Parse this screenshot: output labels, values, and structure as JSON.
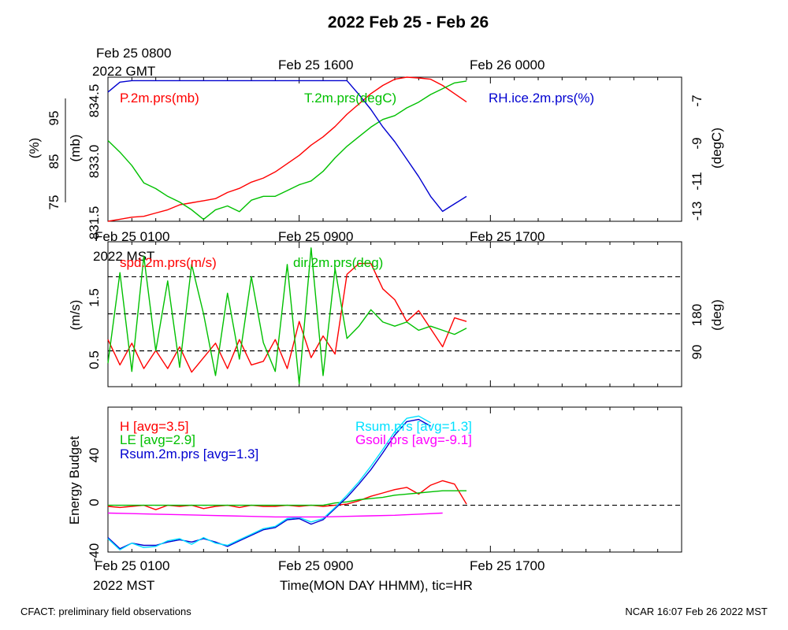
{
  "figure": {
    "title": "2022 Feb 25 - Feb 26",
    "footer_left": "CFACT: preliminary field observations",
    "footer_right": "NCAR 16:07 Feb 26 2022 MST",
    "top_time_labels": [
      "Feb 25 0800",
      "Feb 25 1600",
      "Feb 26 0000"
    ],
    "top_time_unit": "2022 GMT",
    "mid_time_labels": [
      "Feb 25 0100",
      "Feb 25 0900",
      "Feb 25 1700"
    ],
    "mid_time_unit": "2022 MST",
    "bottom_time_labels": [
      "Feb 25 0100",
      "Feb 25 0900",
      "Feb 25 1700"
    ],
    "bottom_time_unit": "2022 MST",
    "xlabel": "Time(MON DAY HHMM), tic=HR"
  },
  "chart_data": [
    {
      "type": "line",
      "panel": "pressure-temperature-humidity",
      "x_unit": "hours since Feb 25 0000 MST",
      "xlim": [
        1,
        25
      ],
      "axes": {
        "rh": {
          "label": "(%)",
          "ticks": [
            "75",
            "85",
            "95"
          ],
          "ylim": [
            72,
            101
          ]
        },
        "pressure": {
          "label": "(mb)",
          "ticks": [
            "831.5",
            "833.0",
            "834.5"
          ],
          "ylim": [
            831.5,
            835.0
          ]
        },
        "temperature": {
          "label": "(degC)",
          "ticks": [
            "-13",
            "-11",
            "-9",
            "-7"
          ],
          "ylim": [
            -13.2,
            -5.7
          ]
        }
      },
      "series": [
        {
          "name": "P.2m.prs(mb)",
          "color": "#ff0000",
          "axis": "pressure",
          "x": [
            1,
            1.5,
            2,
            2.5,
            3,
            3.5,
            4,
            4.5,
            5,
            5.5,
            6,
            6.5,
            7,
            7.5,
            8,
            8.5,
            9,
            9.5,
            10,
            10.5,
            11,
            11.5,
            12,
            12.5,
            13,
            13.5,
            14,
            14.5,
            15,
            15.5,
            16
          ],
          "values": [
            831.5,
            831.55,
            831.6,
            831.62,
            831.7,
            831.78,
            831.9,
            831.95,
            832.0,
            832.05,
            832.2,
            832.3,
            832.45,
            832.55,
            832.7,
            832.9,
            833.1,
            833.35,
            833.55,
            833.8,
            834.1,
            834.35,
            834.6,
            834.8,
            834.95,
            835.0,
            834.98,
            834.95,
            834.8,
            834.6,
            834.4
          ]
        },
        {
          "name": "T.2m.prs(degC)",
          "color": "#00c000",
          "axis": "temperature",
          "x": [
            1,
            1.5,
            2,
            2.5,
            3,
            3.5,
            4,
            4.5,
            5,
            5.5,
            6,
            6.5,
            7,
            7.5,
            8,
            8.5,
            9,
            9.5,
            10,
            10.5,
            11,
            11.5,
            12,
            12.5,
            13,
            13.5,
            14,
            14.5,
            15,
            15.5,
            16
          ],
          "values": [
            -9.0,
            -9.6,
            -10.3,
            -11.2,
            -11.5,
            -11.9,
            -12.2,
            -12.6,
            -13.1,
            -12.6,
            -12.4,
            -12.7,
            -12.1,
            -11.9,
            -11.9,
            -11.6,
            -11.3,
            -11.1,
            -10.6,
            -9.9,
            -9.3,
            -8.8,
            -8.3,
            -7.9,
            -7.7,
            -7.3,
            -7.0,
            -6.6,
            -6.3,
            -6.0,
            -5.9
          ]
        },
        {
          "name": "RH.ice.2m.prs(%)",
          "color": "#0000d0",
          "axis": "rh",
          "x": [
            1,
            1.5,
            2,
            2.5,
            3,
            3.5,
            4,
            4.5,
            5,
            5.5,
            6,
            6.5,
            7,
            7.5,
            8,
            8.5,
            9,
            9.5,
            10,
            10.5,
            11,
            11.5,
            12,
            12.5,
            13,
            13.5,
            14,
            14.5,
            15,
            15.5,
            16
          ],
          "values": [
            98,
            100,
            100.3,
            100.3,
            100.3,
            100.3,
            100.3,
            100.3,
            100.3,
            100.3,
            100.3,
            100.3,
            100.3,
            100.3,
            100.3,
            100.3,
            100.3,
            100.3,
            100.3,
            100.3,
            100.3,
            97.5,
            94.5,
            91,
            88,
            84.5,
            81,
            77,
            74,
            75.5,
            77
          ]
        }
      ],
      "legend": [
        {
          "label": "P.2m.prs(mb)",
          "color": "#ff0000",
          "position": "top-left"
        },
        {
          "label": "T.2m.prs(degC)",
          "color": "#00c000",
          "position": "top-center"
        },
        {
          "label": "RH.ice.2m.prs(%)",
          "color": "#0000d0",
          "position": "top-right"
        }
      ]
    },
    {
      "type": "line",
      "panel": "wind",
      "x_unit": "hours since Feb 25 0000 MST",
      "xlim": [
        1,
        25
      ],
      "axes": {
        "speed": {
          "label": "(m/s)",
          "ticks": [
            "0.5",
            "1.5"
          ],
          "ylim": [
            0.05,
            2.05
          ]
        },
        "direction": {
          "label": "(deg)",
          "ticks": [
            "90",
            "180"
          ],
          "ylim": [
            3,
            355
          ]
        }
      },
      "reference_lines": {
        "axis": "direction",
        "values": [
          90,
          180,
          270
        ],
        "style": "dashed"
      },
      "series": [
        {
          "name": "spd.2m.prs(m/s)",
          "color": "#ff0000",
          "axis": "speed",
          "x": [
            1,
            1.5,
            2,
            2.5,
            3,
            3.5,
            4,
            4.5,
            5,
            5.5,
            6,
            6.5,
            7,
            7.5,
            8,
            8.5,
            9,
            9.5,
            10,
            10.5,
            11,
            11.5,
            12,
            12.5,
            13,
            13.5,
            14,
            14.5,
            15,
            15.5,
            16
          ],
          "values": [
            0.7,
            0.35,
            0.65,
            0.3,
            0.55,
            0.3,
            0.6,
            0.25,
            0.45,
            0.65,
            0.3,
            0.7,
            0.35,
            0.4,
            0.7,
            0.3,
            0.95,
            0.45,
            0.75,
            0.5,
            1.6,
            1.75,
            1.75,
            1.4,
            1.25,
            0.95,
            1.1,
            0.85,
            0.6,
            1.0,
            0.95
          ]
        },
        {
          "name": "dir.2m.prs(deg)",
          "color": "#00c000",
          "axis": "direction",
          "x": [
            1,
            1.5,
            2,
            2.5,
            3,
            3.5,
            4,
            4.5,
            5,
            5.5,
            6,
            6.5,
            7,
            7.5,
            8,
            8.5,
            9,
            9.5,
            10,
            10.5,
            11,
            11.5,
            12,
            12.5,
            13,
            13.5,
            14,
            14.5,
            15,
            15.5,
            16
          ],
          "values": [
            60,
            280,
            40,
            320,
            90,
            260,
            50,
            300,
            180,
            30,
            230,
            70,
            270,
            110,
            40,
            300,
            10,
            340,
            30,
            290,
            120,
            150,
            190,
            160,
            150,
            160,
            140,
            150,
            140,
            130,
            145
          ]
        }
      ],
      "legend": [
        {
          "label": "spd.2m.prs(m/s)",
          "color": "#ff0000",
          "position": "top-left"
        },
        {
          "label": "dir.2m.prs(deg)",
          "color": "#00c000",
          "position": "top-center"
        }
      ]
    },
    {
      "type": "line",
      "panel": "energy-budget",
      "x_unit": "hours since Feb 25 0000 MST",
      "xlim": [
        1,
        25
      ],
      "ylabel": "Energy Budget",
      "yticks": [
        "-40",
        "0",
        "40"
      ],
      "ylim": [
        -42,
        88
      ],
      "reference_lines": {
        "values": [
          0
        ],
        "style": "dashed"
      },
      "series": [
        {
          "name": "H [avg=3.5]",
          "color": "#ff0000",
          "x": [
            1,
            1.5,
            2,
            2.5,
            3,
            3.5,
            4,
            4.5,
            5,
            5.5,
            6,
            6.5,
            7,
            7.5,
            8,
            8.5,
            9,
            9.5,
            10,
            10.5,
            11,
            11.5,
            12,
            12.5,
            13,
            13.5,
            14,
            14.5,
            15,
            15.5,
            16
          ],
          "values": [
            -1,
            -2,
            -1,
            0,
            -4,
            0,
            -1,
            0,
            -3,
            -1,
            0,
            -2,
            0,
            -1,
            -1,
            0,
            -1,
            0,
            -1,
            0,
            1,
            4,
            8,
            11,
            14,
            16,
            10,
            18,
            22,
            19,
            1
          ]
        },
        {
          "name": "LE [avg=2.9]",
          "color": "#00c000",
          "x": [
            1,
            1.5,
            2,
            2.5,
            3,
            3.5,
            4,
            4.5,
            5,
            5.5,
            6,
            6.5,
            7,
            7.5,
            8,
            8.5,
            9,
            9.5,
            10,
            10.5,
            11,
            11.5,
            12,
            12.5,
            13,
            13.5,
            14,
            14.5,
            15,
            15.5,
            16
          ],
          "values": [
            0,
            0,
            0,
            0,
            0,
            0,
            0,
            0,
            0,
            0,
            0,
            0,
            0,
            0,
            0,
            0,
            0,
            0,
            0,
            2,
            3,
            5,
            6,
            7,
            9,
            10,
            11,
            12,
            13,
            13,
            13
          ]
        },
        {
          "name": "Rsum.2m.prs [avg=1.3]",
          "color": "#0000d0",
          "x": [
            1,
            1.5,
            2,
            2.5,
            3,
            3.5,
            4,
            4.5,
            5,
            5.5,
            6,
            6.5,
            7,
            7.5,
            8,
            8.5,
            9,
            9.5,
            10,
            10.5,
            11,
            11.5,
            12,
            12.5,
            13,
            13.5,
            14,
            14.5
          ],
          "values": [
            -29,
            -39,
            -34,
            -36,
            -36,
            -33,
            -31,
            -33,
            -30,
            -33,
            -37,
            -32,
            -27,
            -22,
            -20,
            -13,
            -12,
            -17,
            -13,
            -3,
            7,
            19,
            32,
            47,
            63,
            75,
            77,
            71
          ]
        },
        {
          "name": "Rsum.prs [avg=1.3]",
          "color": "#00e0ff",
          "x": [
            1,
            1.5,
            2,
            2.5,
            3,
            3.5,
            4,
            4.5,
            5,
            5.5,
            6,
            6.5,
            7,
            7.5,
            8,
            8.5,
            9,
            9.5,
            10,
            10.5,
            11,
            11.5,
            12,
            12.5,
            13,
            13.5,
            14,
            14.5
          ],
          "values": [
            -30,
            -40,
            -34,
            -38,
            -37,
            -32,
            -30,
            -35,
            -29,
            -34,
            -36,
            -31,
            -26,
            -21,
            -19,
            -12,
            -11,
            -15,
            -12,
            -2,
            9,
            21,
            35,
            50,
            66,
            78,
            80,
            74
          ]
        },
        {
          "name": "Gsoil.prs [avg=-9.1]",
          "color": "#ff00ff",
          "x": [
            1,
            2,
            3,
            4,
            5,
            6,
            7,
            8,
            9,
            10,
            11,
            12,
            13,
            14,
            15
          ],
          "values": [
            -7,
            -7.5,
            -8,
            -8.5,
            -9,
            -9.5,
            -10,
            -10.5,
            -10.5,
            -10.5,
            -10,
            -9.5,
            -9,
            -8,
            -7
          ]
        }
      ],
      "legend": [
        {
          "label": "H [avg=3.5]",
          "color": "#ff0000",
          "position": "top-left"
        },
        {
          "label": "LE [avg=2.9]",
          "color": "#00c000",
          "position": "top-left"
        },
        {
          "label": "Rsum.2m.prs [avg=1.3]",
          "color": "#0000d0",
          "position": "top-left"
        },
        {
          "label": "Rsum.prs [avg=1.3]",
          "color": "#00e0ff",
          "position": "top-center"
        },
        {
          "label": "Gsoil.prs [avg=-9.1]",
          "color": "#ff00ff",
          "position": "top-center"
        }
      ]
    }
  ]
}
